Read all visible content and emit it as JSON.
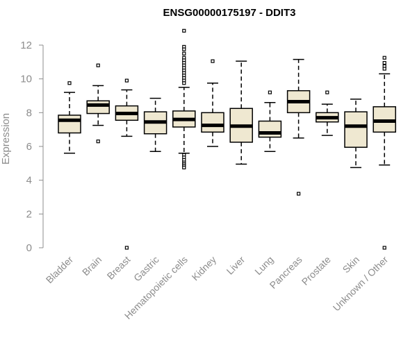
{
  "chart_data": {
    "type": "boxplot",
    "title": "ENSG00000175197 - DDIT3",
    "ylabel": "Expression",
    "xlabel": "",
    "ylim": [
      0,
      12
    ],
    "yticks": [
      0,
      2,
      4,
      6,
      8,
      10,
      12
    ],
    "grid": false,
    "box_fill": "#efe8d1",
    "categories": [
      "Bladder",
      "Brain",
      "Breast",
      "Gastric",
      "Hematopoietic cells",
      "Kidney",
      "Liver",
      "Lung",
      "Pancreas",
      "Prostate",
      "Skin",
      "Unknown / Other"
    ],
    "boxes": [
      {
        "whislo": 5.6,
        "q1": 6.8,
        "med": 7.55,
        "q3": 7.85,
        "whishi": 9.2,
        "fliers": [
          9.75
        ]
      },
      {
        "whislo": 7.25,
        "q1": 7.95,
        "med": 8.45,
        "q3": 8.7,
        "whishi": 9.6,
        "fliers": [
          10.8,
          6.3
        ]
      },
      {
        "whislo": 6.6,
        "q1": 7.55,
        "med": 7.95,
        "q3": 8.4,
        "whishi": 9.35,
        "fliers": [
          9.9,
          0.0
        ]
      },
      {
        "whislo": 5.7,
        "q1": 6.75,
        "med": 7.45,
        "q3": 8.05,
        "whishi": 8.85,
        "fliers": []
      },
      {
        "whislo": 5.6,
        "q1": 7.15,
        "med": 7.6,
        "q3": 8.1,
        "whishi": 9.5,
        "fliers": [
          12.85,
          11.9,
          11.75,
          11.5,
          11.25,
          11.1,
          10.95,
          10.8,
          10.65,
          10.5,
          10.35,
          10.2,
          10.05,
          9.9,
          9.75,
          5.5,
          5.35,
          5.2,
          5.05,
          4.95,
          4.85,
          4.75
        ]
      },
      {
        "whislo": 6.0,
        "q1": 6.85,
        "med": 7.25,
        "q3": 8.0,
        "whishi": 9.75,
        "fliers": [
          11.05
        ]
      },
      {
        "whislo": 4.95,
        "q1": 6.25,
        "med": 7.2,
        "q3": 8.25,
        "whishi": 11.05,
        "fliers": []
      },
      {
        "whislo": 5.7,
        "q1": 6.55,
        "med": 6.8,
        "q3": 7.5,
        "whishi": 8.6,
        "fliers": [
          9.2
        ]
      },
      {
        "whislo": 6.5,
        "q1": 8.0,
        "med": 8.65,
        "q3": 9.3,
        "whishi": 11.15,
        "fliers": [
          3.2
        ]
      },
      {
        "whislo": 6.65,
        "q1": 7.45,
        "med": 7.7,
        "q3": 8.0,
        "whishi": 8.5,
        "fliers": [
          9.2
        ]
      },
      {
        "whislo": 4.75,
        "q1": 5.95,
        "med": 7.2,
        "q3": 8.05,
        "whishi": 8.8,
        "fliers": []
      },
      {
        "whislo": 4.9,
        "q1": 6.85,
        "med": 7.5,
        "q3": 8.35,
        "whishi": 10.3,
        "fliers": [
          11.25,
          10.95,
          10.75,
          10.6,
          0.0
        ]
      }
    ]
  }
}
